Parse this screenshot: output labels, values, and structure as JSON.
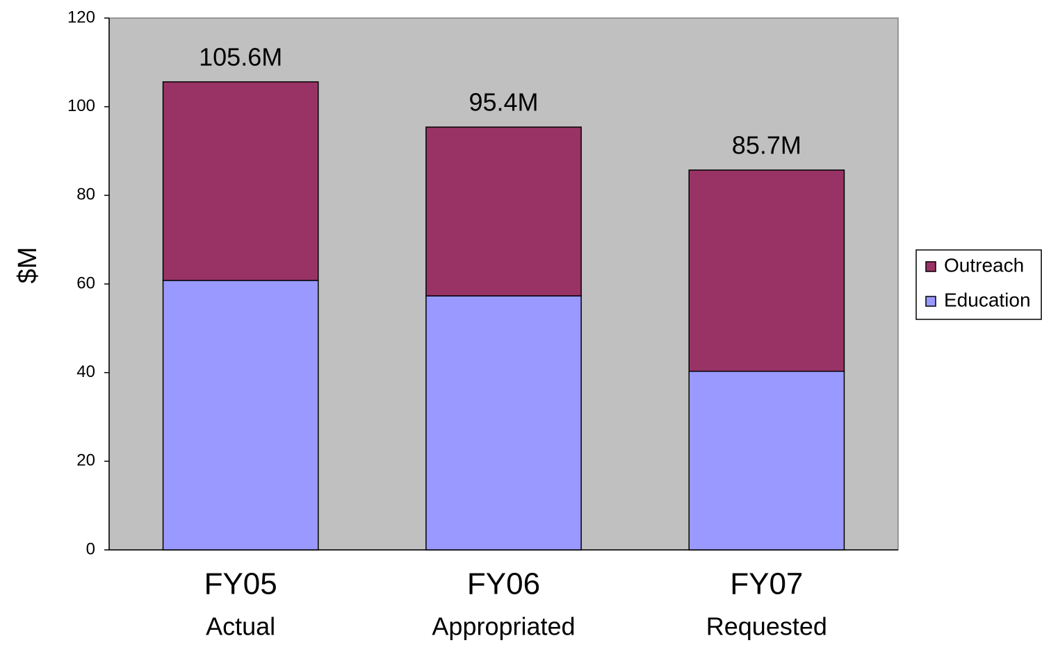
{
  "chart_data": {
    "type": "stacked_bar",
    "ylabel": "$M",
    "categories": [
      "FY05",
      "FY06",
      "FY07"
    ],
    "sublabels": [
      "Actual",
      "Appropriated",
      "Requested"
    ],
    "series": [
      {
        "name": "Education",
        "color": "#9999ff",
        "values": [
          60.8,
          57.3,
          40.3
        ]
      },
      {
        "name": "Outreach",
        "color": "#993366",
        "values": [
          44.8,
          38.1,
          45.4
        ]
      }
    ],
    "totals": {
      "values": [
        105.6,
        95.4,
        85.7
      ],
      "value_labels": [
        "105.6M",
        "95.4M",
        "85.7M"
      ]
    },
    "ylim": [
      0,
      120
    ],
    "yticks": [
      0,
      20,
      40,
      60,
      80,
      100,
      120
    ],
    "grid": false,
    "legend": "right",
    "plot_background": "#c0c0c0"
  }
}
